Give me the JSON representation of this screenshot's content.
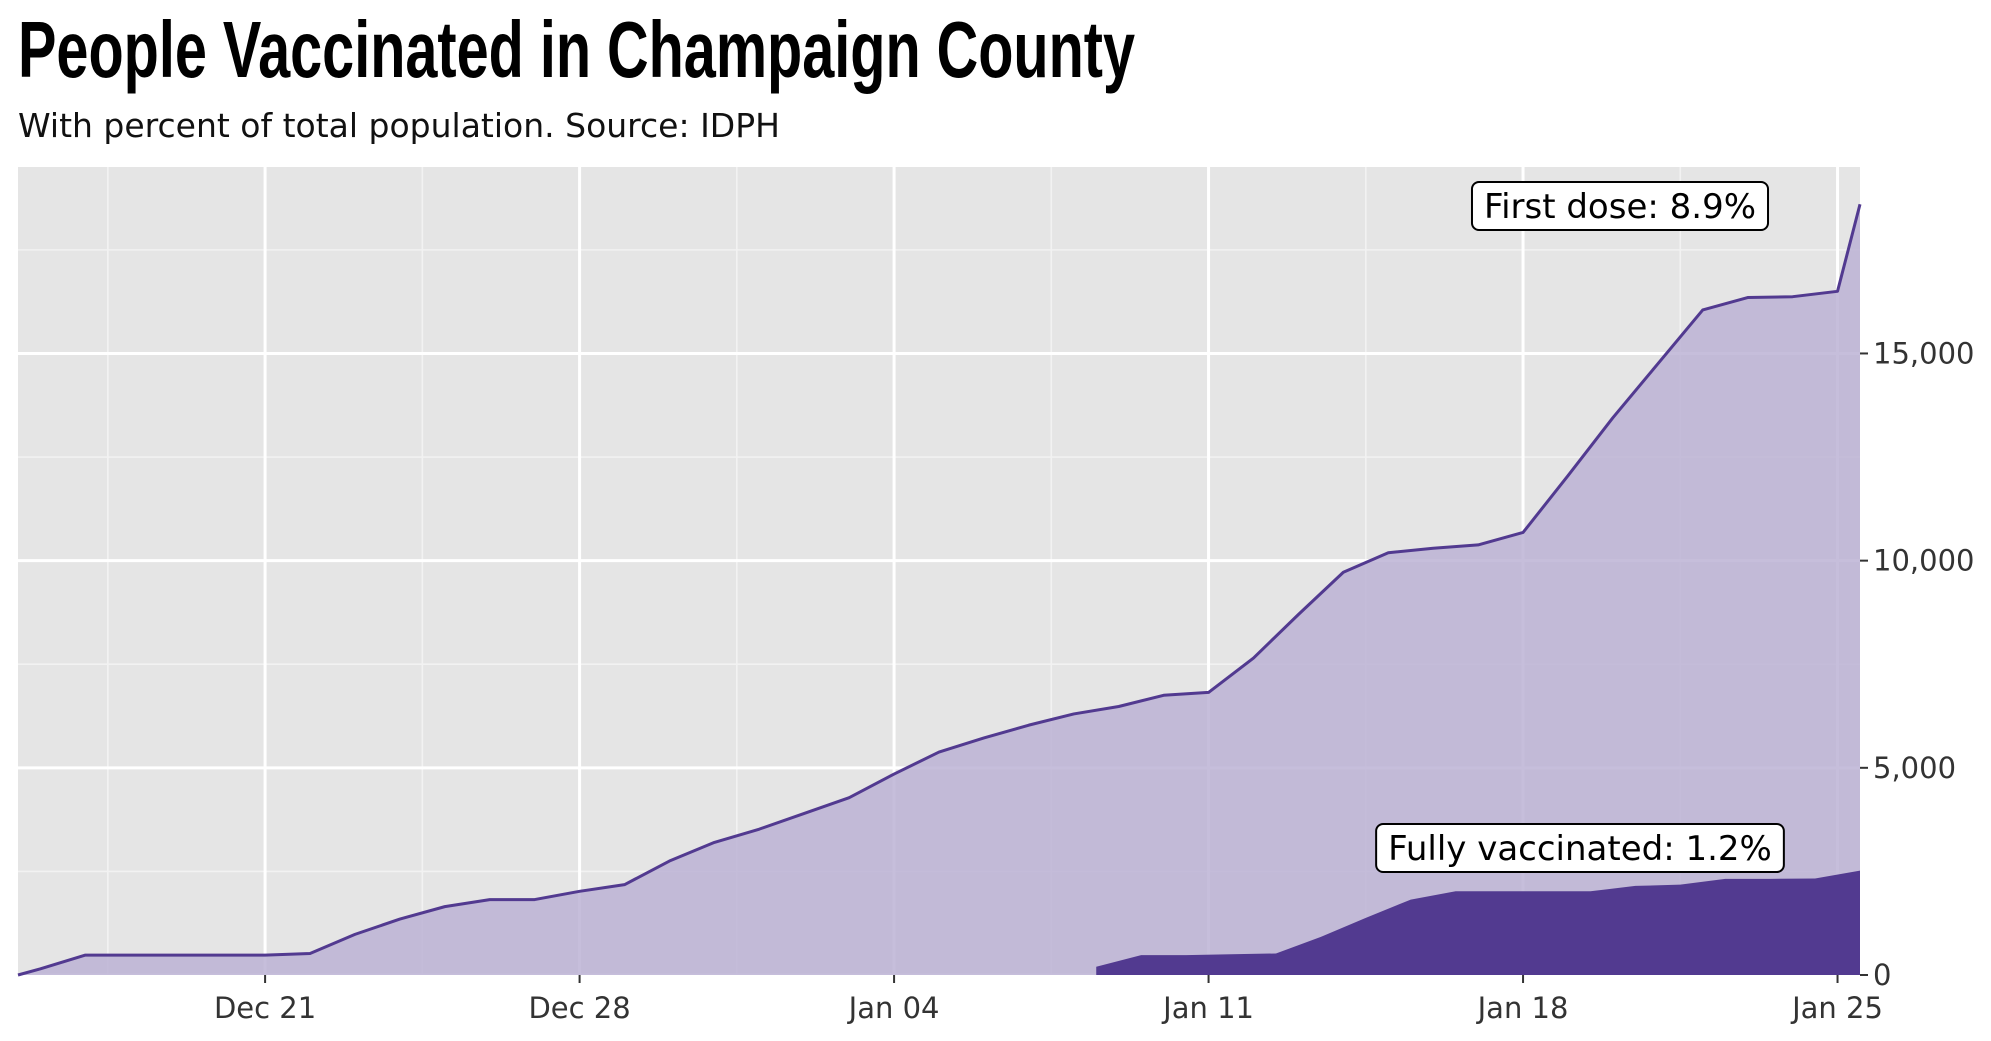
{
  "chart_data": {
    "type": "area",
    "title": "People Vaccinated in Champaign County",
    "subtitle": "With percent of total population. Source: IDPH",
    "xlabel": "",
    "ylabel": "",
    "x_tick_labels": [
      "Dec 21",
      "Dec 28",
      "Jan 04",
      "Jan 11",
      "Jan 18",
      "Jan 25"
    ],
    "x_tick_days": [
      21,
      28,
      35,
      42,
      49,
      56
    ],
    "y_tick_labels": [
      "0",
      "5,000",
      "10,000",
      "15,000"
    ],
    "y_ticks": [
      0,
      5000,
      10000,
      15000
    ],
    "xlim": [
      15.5,
      56.5
    ],
    "ylim": [
      0,
      19500
    ],
    "series": [
      {
        "name": "First dose",
        "color": "#523a90",
        "fill": "#b9b0d3",
        "annotation": "First dose: 8.9%",
        "days": [
          15.5,
          16,
          17,
          18,
          19,
          20,
          21,
          22,
          23,
          24,
          25,
          26,
          27,
          28,
          29,
          30,
          31,
          32,
          33,
          34,
          35,
          36,
          37,
          38,
          39,
          40,
          41,
          42,
          43,
          44,
          45,
          46,
          47,
          48,
          49,
          50,
          51,
          52,
          53,
          54,
          55,
          56,
          56.5
        ],
        "values": [
          0,
          150,
          480,
          480,
          480,
          480,
          480,
          520,
          980,
          1350,
          1650,
          1820,
          1820,
          2020,
          2180,
          2750,
          3200,
          3520,
          3900,
          4280,
          4850,
          5380,
          5720,
          6030,
          6300,
          6480,
          6750,
          6820,
          7650,
          8700,
          9720,
          10190,
          10300,
          10380,
          10680,
          12050,
          13450,
          14750,
          16050,
          16350,
          16370,
          16500,
          18600
        ]
      },
      {
        "name": "Fully vaccinated",
        "color": "#523a90",
        "fill": "#523a90",
        "annotation": "Fully vaccinated: 1.2%",
        "days": [
          39.5,
          40.5,
          41.5,
          42.5,
          43.5,
          44.5,
          45.5,
          46.5,
          47.5,
          48.5,
          49.5,
          50.5,
          51.5,
          52.5,
          53.5,
          54.5,
          55.5,
          56.5
        ],
        "values": [
          200,
          480,
          480,
          500,
          520,
          920,
          1380,
          1820,
          2020,
          2020,
          2020,
          2020,
          2150,
          2180,
          2320,
          2320,
          2330,
          2520
        ]
      }
    ],
    "grid": true,
    "legend": "none"
  }
}
